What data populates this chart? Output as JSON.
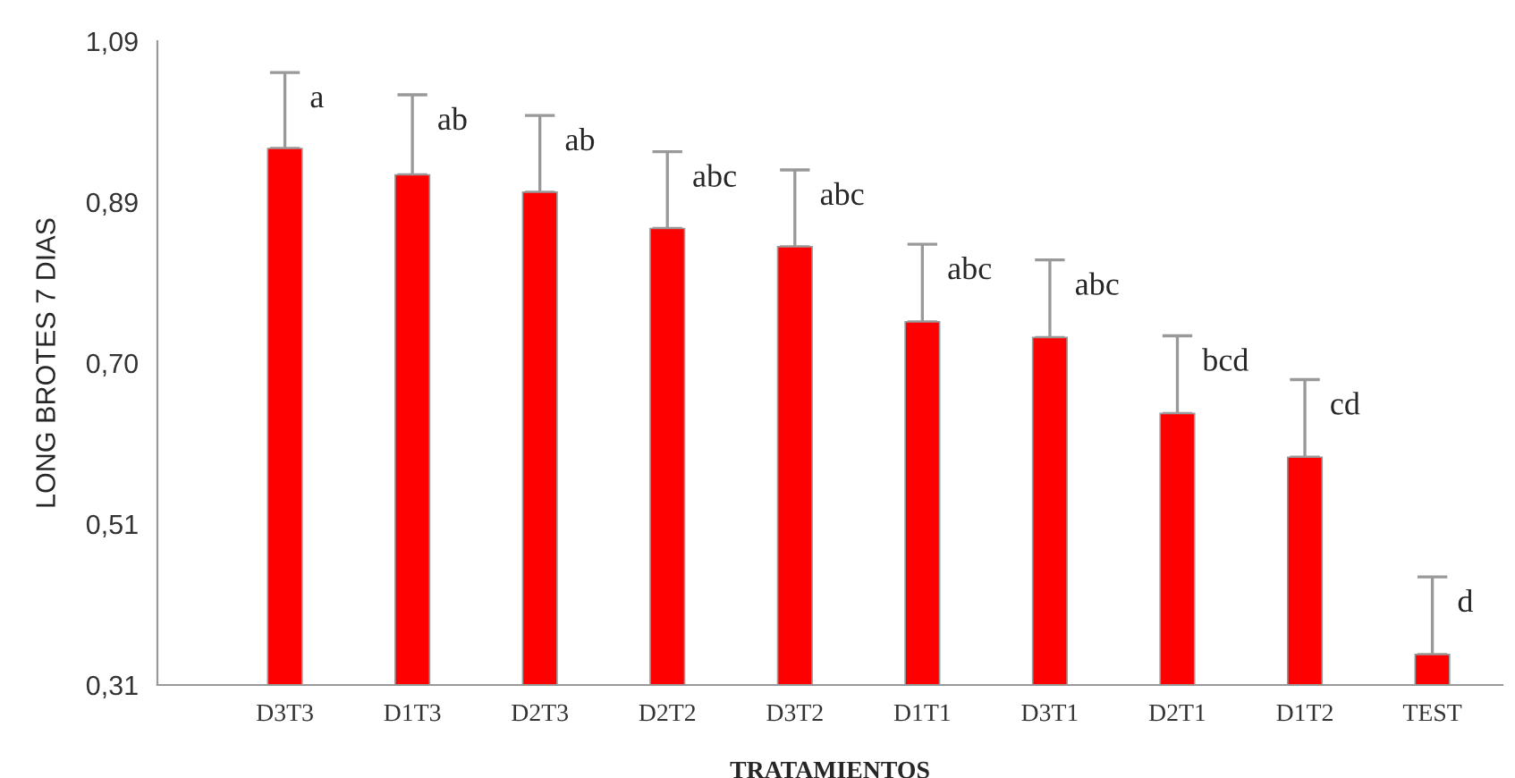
{
  "chart_data": {
    "type": "bar",
    "xlabel": "TRATAMIENTOS",
    "ylabel": "LONG BROTES 7 DIAS",
    "categories": [
      "D3T3",
      "D1T3",
      "D2T3",
      "D2T2",
      "D3T2",
      "D1T1",
      "D3T1",
      "D2T1",
      "D1T2",
      "TEST"
    ],
    "values": [
      0.96,
      0.928,
      0.907,
      0.863,
      0.841,
      0.75,
      0.731,
      0.639,
      0.586,
      0.347
    ],
    "errors": [
      [
        0.96,
        1.052
      ],
      [
        0.928,
        1.025
      ],
      [
        0.907,
        1.0
      ],
      [
        0.863,
        0.956
      ],
      [
        0.841,
        0.934
      ],
      [
        0.75,
        0.844
      ],
      [
        0.731,
        0.825
      ],
      [
        0.639,
        0.733
      ],
      [
        0.586,
        0.68
      ],
      [
        0.347,
        0.441
      ]
    ],
    "color": "#ff0000",
    "ylim": [
      0.31,
      1.09
    ],
    "yticks": [
      {
        "value": 0.31,
        "label": "0,31"
      },
      {
        "value": 0.505,
        "label": "0,51"
      },
      {
        "value": 0.7,
        "label": "0,70"
      },
      {
        "value": 0.895,
        "label": "0,89"
      },
      {
        "value": 1.09,
        "label": "1,09"
      }
    ],
    "annotations": [
      {
        "text": "a",
        "x": "D3T3",
        "y": 1.052
      },
      {
        "text": "ab",
        "x": "D1T3",
        "y": 1.025
      },
      {
        "text": "ab",
        "x": "D2T3",
        "y": 1.0
      },
      {
        "text": "abc",
        "x": "D2T2",
        "y": 0.956
      },
      {
        "text": "abc",
        "x": "D3T2",
        "y": 0.934
      },
      {
        "text": "abc",
        "x": "D1T1",
        "y": 0.844
      },
      {
        "text": "abc",
        "x": "D3T1",
        "y": 0.825
      },
      {
        "text": "bcd",
        "x": "D2T1",
        "y": 0.733
      },
      {
        "text": "cd",
        "x": "D1T2",
        "y": 0.68
      },
      {
        "text": "d",
        "x": "TEST",
        "y": 0.441
      }
    ],
    "grid": false,
    "legend": false
  }
}
